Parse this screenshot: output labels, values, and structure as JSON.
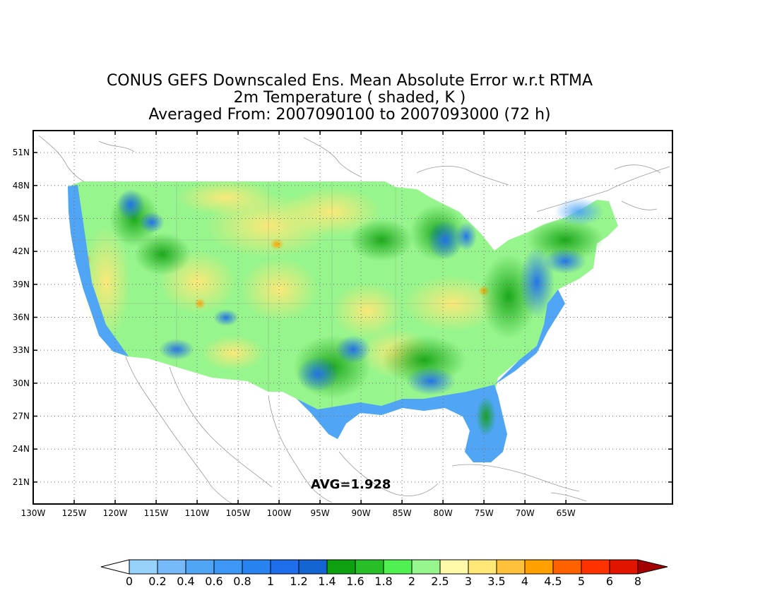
{
  "title": {
    "line1": "CONUS GEFS Downscaled Ens. Mean Absolute Error w.r.t RTMA",
    "line2": "2m Temperature ( shaded, K )",
    "line3": "Averaged From: 2007090100 to 2007093000 (72 h)"
  },
  "average_label": "AVG=1.928",
  "map": {
    "lon_range": [
      -130,
      -52
    ],
    "lat_range": [
      19,
      53
    ],
    "lat_ticks": [
      {
        "value": 51,
        "label": "51N"
      },
      {
        "value": 48,
        "label": "48N"
      },
      {
        "value": 45,
        "label": "45N"
      },
      {
        "value": 42,
        "label": "42N"
      },
      {
        "value": 39,
        "label": "39N"
      },
      {
        "value": 36,
        "label": "36N"
      },
      {
        "value": 33,
        "label": "33N"
      },
      {
        "value": 30,
        "label": "30N"
      },
      {
        "value": 27,
        "label": "27N"
      },
      {
        "value": 24,
        "label": "24N"
      },
      {
        "value": 21,
        "label": "21N"
      }
    ],
    "lon_ticks": [
      {
        "value": -130,
        "label": "130W"
      },
      {
        "value": -125,
        "label": "125W"
      },
      {
        "value": -120,
        "label": "120W"
      },
      {
        "value": -115,
        "label": "115W"
      },
      {
        "value": -110,
        "label": "110W"
      },
      {
        "value": -105,
        "label": "105W"
      },
      {
        "value": -100,
        "label": "100W"
      },
      {
        "value": -95,
        "label": "95W"
      },
      {
        "value": -90,
        "label": "90W"
      },
      {
        "value": -85,
        "label": "85W"
      },
      {
        "value": -80,
        "label": "80W"
      },
      {
        "value": -75,
        "label": "75W"
      },
      {
        "value": -70,
        "label": "70W"
      },
      {
        "value": -65,
        "label": "65W"
      }
    ],
    "grid": true
  },
  "colorbar": {
    "labels": [
      "0",
      "0.2",
      "0.4",
      "0.6",
      "0.8",
      "1",
      "1.2",
      "1.4",
      "1.6",
      "1.8",
      "2",
      "2.5",
      "3",
      "3.5",
      "4",
      "4.5",
      "5",
      "6",
      "8"
    ],
    "under_color": "#ffffff",
    "colors": [
      "#96d2fa",
      "#78b9fa",
      "#50a5f5",
      "#3c97f5",
      "#2882f0",
      "#1e6eeb",
      "#1464d2",
      "#0fa00f",
      "#28be28",
      "#50f050",
      "#96f58c",
      "#fffaaa",
      "#ffe878",
      "#ffc03c",
      "#ffa000",
      "#ff6000",
      "#ff3200",
      "#e11400",
      "#c00000"
    ],
    "over_color": "#a50000"
  }
}
